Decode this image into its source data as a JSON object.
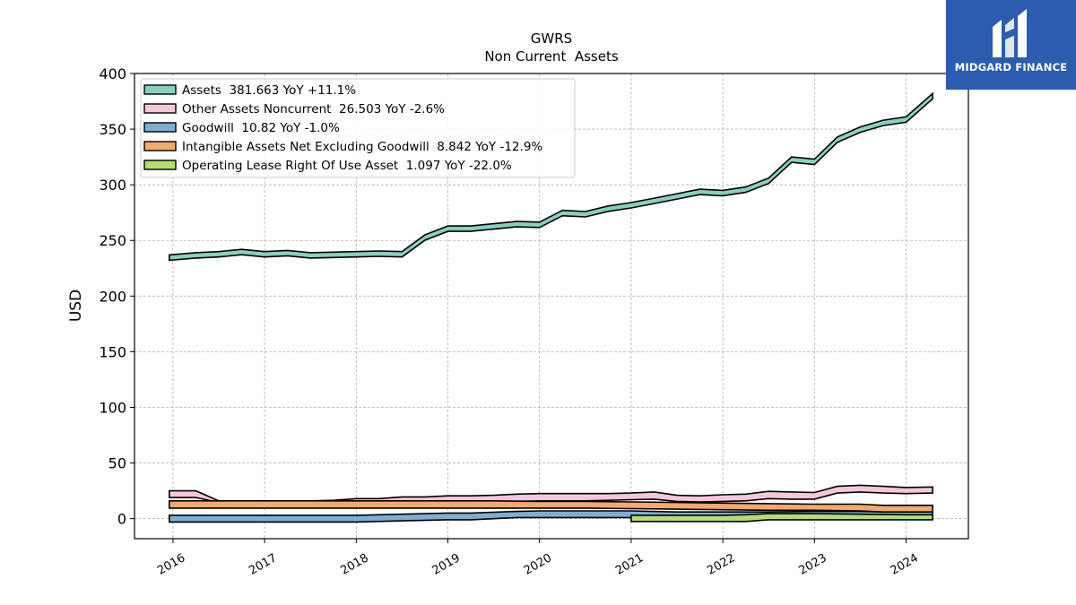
{
  "brand": {
    "name": "MIDGARD FINANCE",
    "logo_color": "#2a5db0"
  },
  "chart_data": {
    "type": "area",
    "title": "GWRS",
    "subtitle": "Non Current  Assets",
    "xlabel": "",
    "ylabel": "USD",
    "ylim": [
      -18,
      400
    ],
    "xlim": [
      2015.58,
      2024.68
    ],
    "x_ticks": [
      "2016",
      "2017",
      "2018",
      "2019",
      "2020",
      "2021",
      "2022",
      "2023",
      "2024"
    ],
    "y_ticks": [
      0,
      50,
      100,
      150,
      200,
      250,
      300,
      350,
      400
    ],
    "grid": true,
    "legend_position": "top-left",
    "series": [
      {
        "name": "Assets  381.663 YoY +11.1%",
        "color": "#88d0c0",
        "band_width": 6,
        "x": [
          2015.96,
          2016.25,
          2016.5,
          2016.75,
          2017.0,
          2017.25,
          2017.5,
          2017.75,
          2018.0,
          2018.25,
          2018.5,
          2018.75,
          2019.0,
          2019.25,
          2019.5,
          2019.75,
          2020.0,
          2020.25,
          2020.5,
          2020.75,
          2021.0,
          2021.25,
          2021.5,
          2021.75,
          2022.0,
          2022.25,
          2022.5,
          2022.75,
          2023.0,
          2023.25,
          2023.5,
          2023.75,
          2024.0,
          2024.29
        ],
        "values": [
          237,
          239,
          240,
          242,
          240,
          241,
          239,
          239.5,
          240,
          240.5,
          240,
          255,
          263,
          263,
          265,
          267,
          266.5,
          277,
          276,
          281,
          284,
          288,
          292,
          296,
          295,
          298,
          306,
          325,
          323,
          343,
          352,
          358,
          361,
          382
        ]
      },
      {
        "name": "Other Assets Noncurrent  26.503 YoY -2.6%",
        "color": "#f5c6dc",
        "x": [
          2015.96,
          2016.25,
          2016.5,
          2016.75,
          2017.0,
          2017.25,
          2017.5,
          2017.75,
          2018.0,
          2018.25,
          2018.5,
          2018.75,
          2019.0,
          2019.25,
          2019.5,
          2019.75,
          2020.0,
          2020.25,
          2020.5,
          2020.75,
          2021.0,
          2021.25,
          2021.5,
          2021.75,
          2022.0,
          2022.25,
          2022.5,
          2022.75,
          2023.0,
          2023.25,
          2023.5,
          2023.75,
          2024.0,
          2024.29
        ],
        "low": [
          19,
          19,
          14.5,
          14.5,
          14.5,
          14.5,
          14.5,
          14.5,
          14.5,
          14.5,
          14.5,
          15,
          15,
          15,
          15,
          15.5,
          16,
          16,
          16,
          16.5,
          17,
          17.5,
          15.5,
          15,
          15.5,
          16,
          18,
          17.5,
          17.5,
          23,
          24,
          23,
          22.5,
          23
        ],
        "values": [
          25,
          25,
          16,
          16,
          16,
          16,
          16,
          16.5,
          18,
          18,
          19.5,
          19.5,
          20.5,
          20.5,
          21,
          22,
          22.5,
          22.5,
          22.5,
          22.5,
          23,
          24,
          21,
          20.5,
          21.5,
          22,
          24.5,
          24,
          23.5,
          29,
          30,
          29,
          28,
          28.5
        ]
      },
      {
        "name": "Goodwill  10.82 YoY -1.0%",
        "color": "#7eaed4",
        "x": [
          2015.96,
          2016.5,
          2017.0,
          2017.5,
          2018.0,
          2018.5,
          2019.0,
          2019.25,
          2019.75,
          2020.0,
          2020.5,
          2021.0,
          2021.5,
          2022.0,
          2022.5,
          2023.0,
          2023.5,
          2023.75,
          2024.0,
          2024.29
        ],
        "low": [
          -3,
          -3,
          -3,
          -3,
          -3,
          -2,
          -1,
          -1,
          1,
          1,
          1,
          1,
          1,
          1,
          2,
          3,
          3,
          3,
          3,
          3
        ],
        "values": [
          3,
          3,
          3,
          3,
          3,
          4,
          5,
          5,
          6.5,
          7,
          7,
          7,
          6,
          6,
          6,
          6.5,
          6.5,
          6,
          6,
          6
        ]
      },
      {
        "name": "Intangible Assets Net Excluding Goodwill  8.842 YoY -12.9%",
        "color": "#f5a96a",
        "x": [
          2015.96,
          2016.5,
          2017.0,
          2017.5,
          2018.0,
          2018.5,
          2019.0,
          2019.5,
          2020.0,
          2020.5,
          2021.0,
          2021.5,
          2022.0,
          2022.5,
          2023.0,
          2023.5,
          2023.75,
          2024.0,
          2024.29
        ],
        "low": [
          9.5,
          9.5,
          9.5,
          9.5,
          9.5,
          9.5,
          9.5,
          9.5,
          9.5,
          9.5,
          9,
          8.5,
          8,
          7.5,
          7.5,
          7,
          6,
          6,
          6
        ],
        "values": [
          16,
          16,
          16,
          16,
          16,
          16,
          16,
          16,
          15.5,
          15.5,
          15,
          14.5,
          14,
          13.5,
          13,
          13,
          12,
          12,
          12
        ]
      },
      {
        "name": "Operating Lease Right Of Use Asset  1.097 YoY -22.0%",
        "color": "#b3df72",
        "x": [
          2021.0,
          2021.5,
          2022.0,
          2022.25,
          2022.5,
          2023.0,
          2023.5,
          2024.0,
          2024.29
        ],
        "low": [
          -2.5,
          -2.5,
          -2.5,
          -2.5,
          -1,
          -1,
          -1,
          -1,
          -1
        ],
        "values": [
          3,
          3,
          3,
          3.5,
          4.5,
          4.5,
          4,
          3.5,
          3.5
        ]
      }
    ]
  }
}
